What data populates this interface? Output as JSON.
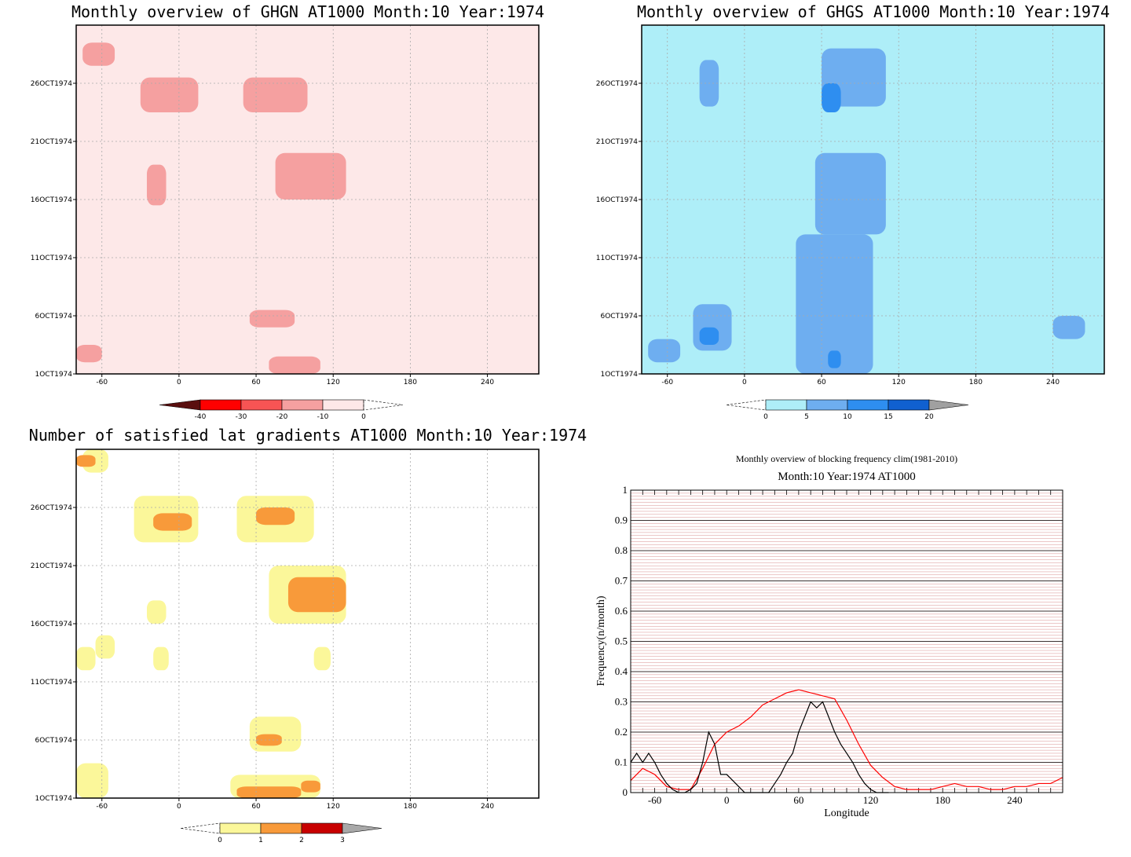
{
  "chart_data": [
    {
      "type": "heatmap",
      "title": "Monthly overview of GHGN AT1000 Month:10 Year:1974",
      "x_ticks": [
        -60,
        0,
        60,
        120,
        180,
        240
      ],
      "y_ticks": [
        "1OCT1974",
        "6OCT1974",
        "11OCT1974",
        "16OCT1974",
        "21OCT1974",
        "26OCT1974"
      ],
      "xlim": [
        -80,
        280
      ],
      "ylim_days": [
        1,
        31
      ],
      "grid": true,
      "colorbar": {
        "ticks": [
          "-40",
          "-30",
          "-20",
          "-10",
          "0"
        ],
        "colors": [
          "#5a0f0f",
          "#ff0000",
          "#f75454",
          "#f5a0a0",
          "#fde8e8"
        ],
        "overflow": "right-dashed"
      },
      "shaded_regions": [
        {
          "level": "-20 to -10",
          "lon": [
            -75,
            -50
          ],
          "day": [
            27.5,
            29.5
          ]
        },
        {
          "level": "-20 to -10",
          "lon": [
            -30,
            15
          ],
          "day": [
            23.5,
            26.5
          ]
        },
        {
          "level": "-20 to -10",
          "lon": [
            50,
            100
          ],
          "day": [
            23.5,
            26.5
          ]
        },
        {
          "level": "-20 to -10",
          "lon": [
            75,
            130
          ],
          "day": [
            16,
            20
          ]
        },
        {
          "level": "-20 to -10",
          "lon": [
            -25,
            -10
          ],
          "day": [
            15.5,
            19
          ]
        },
        {
          "level": "-20 to -10",
          "lon": [
            55,
            90
          ],
          "day": [
            5,
            6.5
          ]
        },
        {
          "level": "-20 to -10",
          "lon": [
            70,
            110
          ],
          "day": [
            1,
            2.5
          ]
        },
        {
          "level": "-20 to -10",
          "lon": [
            -80,
            -60
          ],
          "day": [
            2,
            3.5
          ]
        }
      ]
    },
    {
      "type": "heatmap",
      "title": "Monthly overview of GHGS AT1000 Month:10 Year:1974",
      "x_ticks": [
        -60,
        0,
        60,
        120,
        180,
        240
      ],
      "y_ticks": [
        "1OCT1974",
        "6OCT1974",
        "11OCT1974",
        "16OCT1974",
        "21OCT1974",
        "26OCT1974"
      ],
      "xlim": [
        -80,
        280
      ],
      "ylim_days": [
        1,
        31
      ],
      "grid": true,
      "colorbar": {
        "ticks": [
          "0",
          "5",
          "10",
          "15",
          "20"
        ],
        "colors": [
          "#aeeef8",
          "#6eaef0",
          "#2e8ef0",
          "#1060d0",
          "#a0a0a0"
        ],
        "overflow": "left-dashed"
      },
      "shaded_regions": [
        {
          "level": "5 to 10",
          "lon": [
            40,
            100
          ],
          "day": [
            1,
            13
          ]
        },
        {
          "level": "5 to 10",
          "lon": [
            55,
            110
          ],
          "day": [
            13,
            20
          ]
        },
        {
          "level": "5 to 10",
          "lon": [
            60,
            110
          ],
          "day": [
            24,
            29
          ]
        },
        {
          "level": "5 to 10",
          "lon": [
            -35,
            -20
          ],
          "day": [
            24,
            28
          ]
        },
        {
          "level": "5 to 10",
          "lon": [
            -40,
            -10
          ],
          "day": [
            3,
            7
          ]
        },
        {
          "level": "5 to 10",
          "lon": [
            -75,
            -50
          ],
          "day": [
            2,
            4
          ]
        },
        {
          "level": "5 to 10",
          "lon": [
            240,
            265
          ],
          "day": [
            4,
            6
          ]
        },
        {
          "level": "10 to 15",
          "lon": [
            -35,
            -20
          ],
          "day": [
            3.5,
            5
          ]
        },
        {
          "level": "10 to 15",
          "lon": [
            60,
            75
          ],
          "day": [
            23.5,
            26
          ]
        },
        {
          "level": "10 to 15",
          "lon": [
            65,
            75
          ],
          "day": [
            1.5,
            3
          ]
        }
      ]
    },
    {
      "type": "heatmap",
      "title": "Number of satisfied lat gradients AT1000 Month:10 Year:1974",
      "x_ticks": [
        -60,
        0,
        60,
        120,
        180,
        240
      ],
      "y_ticks": [
        "1OCT1974",
        "6OCT1974",
        "11OCT1974",
        "16OCT1974",
        "21OCT1974",
        "26OCT1974"
      ],
      "xlim": [
        -80,
        280
      ],
      "ylim_days": [
        1,
        31
      ],
      "grid": true,
      "colorbar": {
        "ticks": [
          "0",
          "1",
          "2",
          "3"
        ],
        "colors": [
          "#fbf79a",
          "#f89a3a",
          "#c80000",
          "#a8a8a8"
        ],
        "overflow": "left-dashed"
      },
      "shaded_regions": [
        {
          "level": "1",
          "lon": [
            -75,
            -55
          ],
          "day": [
            29,
            31
          ]
        },
        {
          "level": "1",
          "lon": [
            -35,
            15
          ],
          "day": [
            23,
            27
          ]
        },
        {
          "level": "1",
          "lon": [
            45,
            105
          ],
          "day": [
            23,
            27
          ]
        },
        {
          "level": "1",
          "lon": [
            70,
            130
          ],
          "day": [
            16,
            21
          ]
        },
        {
          "level": "1",
          "lon": [
            -25,
            -10
          ],
          "day": [
            16,
            18
          ]
        },
        {
          "level": "1",
          "lon": [
            -80,
            -65
          ],
          "day": [
            12,
            14
          ]
        },
        {
          "level": "1",
          "lon": [
            -65,
            -50
          ],
          "day": [
            13,
            15
          ]
        },
        {
          "level": "1",
          "lon": [
            -20,
            -8
          ],
          "day": [
            12,
            14
          ]
        },
        {
          "level": "1",
          "lon": [
            105,
            118
          ],
          "day": [
            12,
            14
          ]
        },
        {
          "level": "1",
          "lon": [
            55,
            95
          ],
          "day": [
            5,
            8
          ]
        },
        {
          "level": "1",
          "lon": [
            -80,
            -55
          ],
          "day": [
            1,
            4
          ]
        },
        {
          "level": "1",
          "lon": [
            40,
            110
          ],
          "day": [
            1,
            3
          ]
        },
        {
          "level": "2",
          "lon": [
            -80,
            -65
          ],
          "day": [
            29.5,
            30.5
          ]
        },
        {
          "level": "2",
          "lon": [
            -20,
            10
          ],
          "day": [
            24,
            25.5
          ]
        },
        {
          "level": "2",
          "lon": [
            60,
            90
          ],
          "day": [
            24.5,
            26
          ]
        },
        {
          "level": "2",
          "lon": [
            85,
            130
          ],
          "day": [
            17,
            20
          ]
        },
        {
          "level": "2",
          "lon": [
            60,
            80
          ],
          "day": [
            5.5,
            6.5
          ]
        },
        {
          "level": "2",
          "lon": [
            45,
            95
          ],
          "day": [
            1,
            2
          ]
        },
        {
          "level": "2",
          "lon": [
            95,
            110
          ],
          "day": [
            1.5,
            2.5
          ]
        }
      ]
    },
    {
      "type": "line",
      "title": "Monthly overview of blocking frequency clim(1981-2010)",
      "subtitle": "Month:10 Year:1974  AT1000",
      "xlabel": "Longitude",
      "ylabel": "Frequency(n/month)",
      "x_ticks": [
        -60,
        0,
        60,
        120,
        180,
        240
      ],
      "y_ticks": [
        "0",
        "0.1",
        "0.2",
        "0.3",
        "0.4",
        "0.5",
        "0.6",
        "0.7",
        "0.8",
        "0.9",
        "1"
      ],
      "xlim": [
        -80,
        280
      ],
      "ylim": [
        0,
        1
      ],
      "grid": true,
      "series": [
        {
          "color": "#ff0000",
          "x": [
            -80,
            -70,
            -60,
            -50,
            -40,
            -30,
            -20,
            -10,
            0,
            10,
            20,
            30,
            40,
            50,
            60,
            70,
            80,
            90,
            100,
            110,
            120,
            130,
            140,
            150,
            160,
            170,
            180,
            190,
            200,
            210,
            220,
            230,
            240,
            250,
            260,
            270,
            280
          ],
          "y": [
            0.04,
            0.08,
            0.06,
            0.02,
            0.01,
            0.01,
            0.08,
            0.16,
            0.2,
            0.22,
            0.25,
            0.29,
            0.31,
            0.33,
            0.34,
            0.33,
            0.32,
            0.31,
            0.24,
            0.16,
            0.09,
            0.05,
            0.02,
            0.01,
            0.01,
            0.01,
            0.02,
            0.03,
            0.02,
            0.02,
            0.01,
            0.01,
            0.02,
            0.02,
            0.03,
            0.03,
            0.05
          ]
        },
        {
          "color": "#000000",
          "x": [
            -80,
            -75,
            -70,
            -65,
            -60,
            -55,
            -50,
            -45,
            -40,
            -35,
            -30,
            -25,
            -20,
            -15,
            -10,
            -5,
            0,
            5,
            10,
            15,
            20,
            25,
            30,
            35,
            40,
            45,
            50,
            55,
            60,
            65,
            70,
            75,
            80,
            85,
            90,
            95,
            100,
            105,
            110,
            115,
            120,
            125,
            130,
            135
          ],
          "y": [
            0.1,
            0.13,
            0.1,
            0.13,
            0.1,
            0.06,
            0.03,
            0.01,
            0.0,
            0.0,
            0.01,
            0.03,
            0.1,
            0.2,
            0.16,
            0.06,
            0.06,
            0.04,
            0.02,
            0.0,
            0.0,
            0.0,
            0.0,
            0.0,
            0.03,
            0.06,
            0.1,
            0.13,
            0.2,
            0.25,
            0.3,
            0.28,
            0.3,
            0.25,
            0.2,
            0.16,
            0.13,
            0.1,
            0.06,
            0.03,
            0.01,
            0.0,
            0.0,
            0.0
          ]
        }
      ]
    }
  ]
}
